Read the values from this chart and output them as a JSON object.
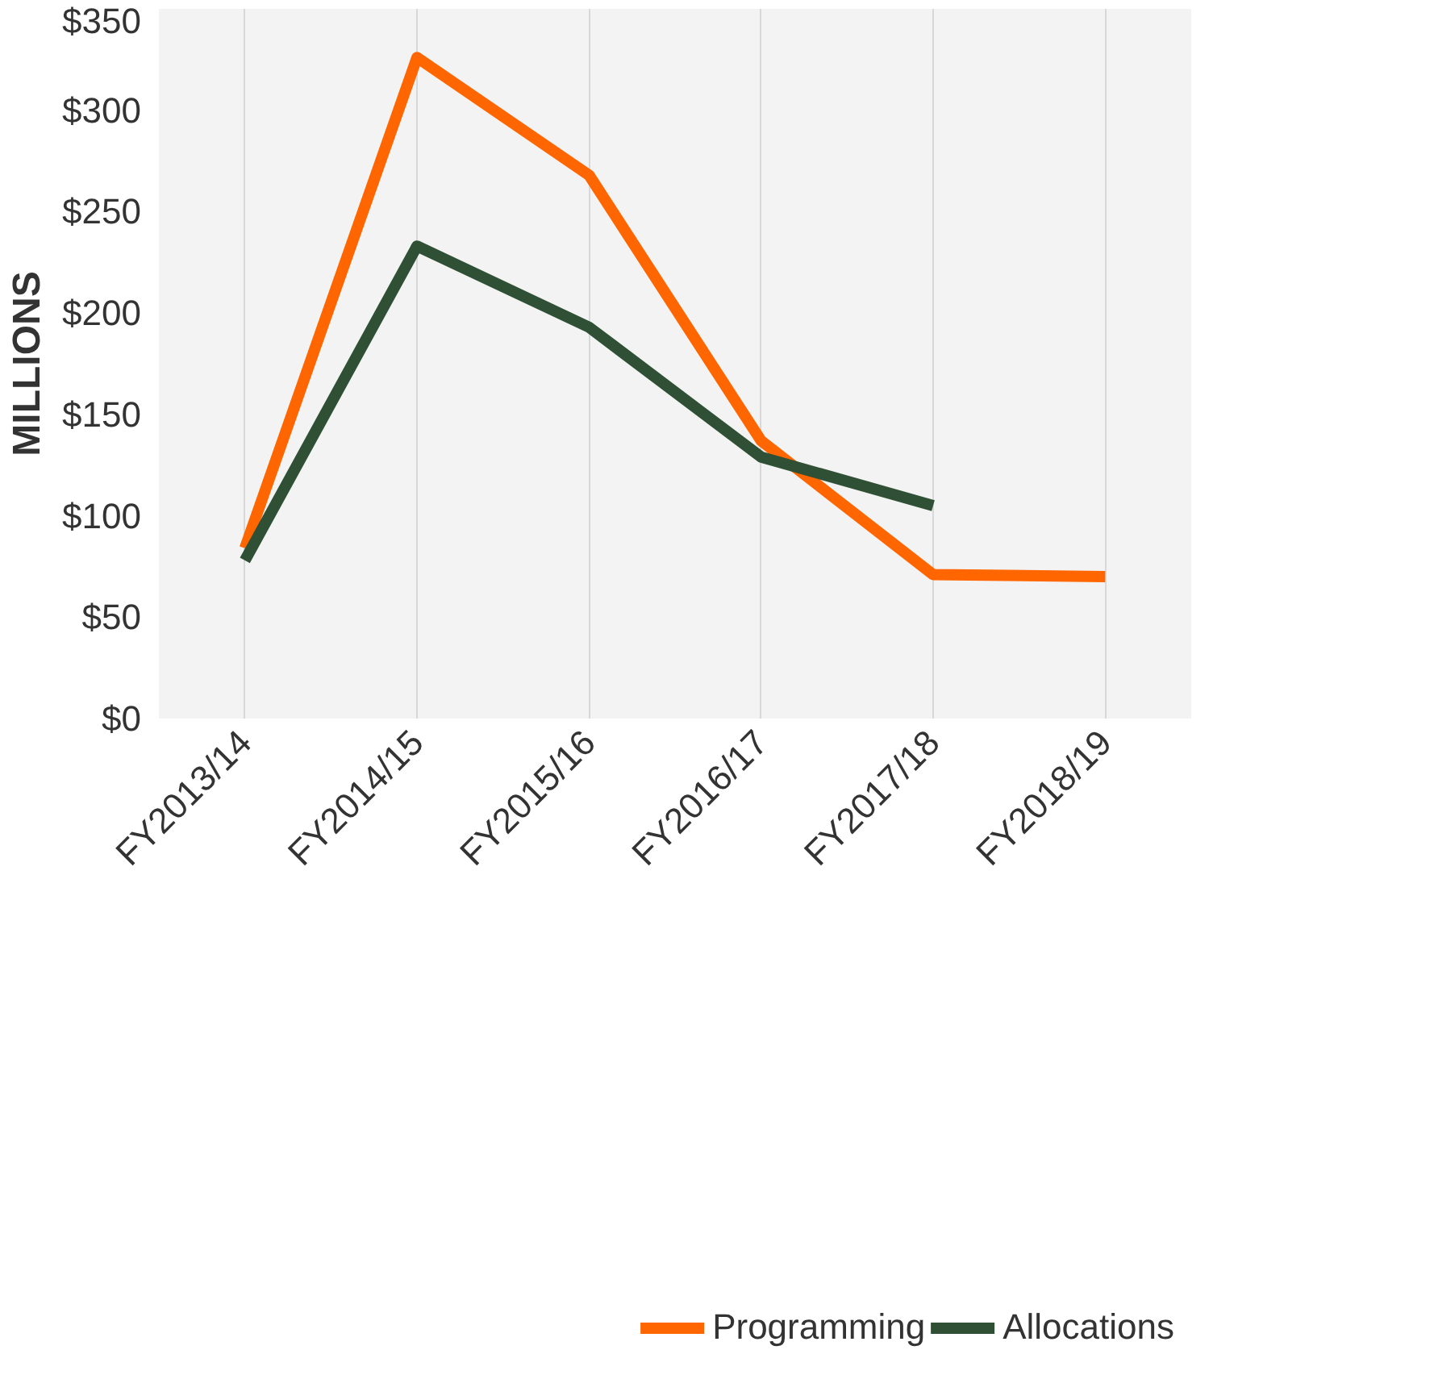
{
  "chart_data": {
    "type": "line",
    "ylabel": "MILLIONS",
    "categories": [
      "FY2013/14",
      "FY2014/15",
      "FY2015/16",
      "FY2016/17",
      "FY2017/18",
      "FY2018/19"
    ],
    "series": [
      {
        "name": "Programming",
        "color": "#ff6600",
        "values": [
          84,
          326,
          268,
          137,
          71,
          70
        ]
      },
      {
        "name": "Allocations",
        "color": "#2f5035",
        "values": [
          78,
          233,
          193,
          129,
          105,
          null
        ]
      }
    ],
    "ylim": [
      0,
      350
    ],
    "yticks": [
      {
        "value": 0,
        "label": "$0"
      },
      {
        "value": 50,
        "label": "$50"
      },
      {
        "value": 100,
        "label": "$100"
      },
      {
        "value": 150,
        "label": "$150"
      },
      {
        "value": 200,
        "label": "$200"
      },
      {
        "value": 250,
        "label": "$250"
      },
      {
        "value": 300,
        "label": "$300"
      },
      {
        "value": 350,
        "label": "$350"
      }
    ],
    "grid": "x",
    "legend": "bottom",
    "marker": "none",
    "line_style": "solid"
  }
}
